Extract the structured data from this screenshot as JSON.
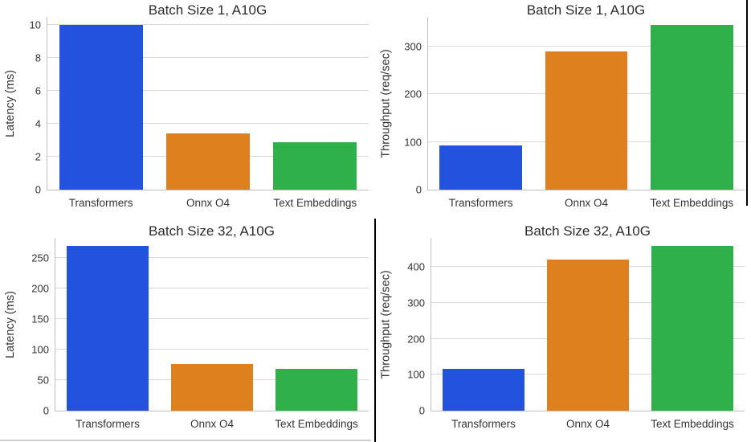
{
  "colors": {
    "bar_blue": "#2353de",
    "bar_orange": "#df801f",
    "bar_green": "#2fb04a",
    "gridline": "#d9d9d9",
    "axis_spine": "#bfbfbf",
    "text": "#333333",
    "divider_black": "#000000",
    "faint_bottom_line": "#cfcfcf"
  },
  "chart_data": [
    {
      "type": "bar",
      "title": "Batch Size 1, A10G",
      "xlabel": "",
      "ylabel": "Latency (ms)",
      "categories": [
        "Transformers",
        "Onnx O4",
        "Text Embeddings"
      ],
      "values": [
        10.0,
        3.4,
        2.9
      ],
      "yticks": [
        0,
        2,
        4,
        6,
        8,
        10
      ],
      "ylim": [
        0,
        10.5
      ],
      "grid": true,
      "legend": false,
      "bar_colors": [
        "#2353de",
        "#df801f",
        "#2fb04a"
      ]
    },
    {
      "type": "bar",
      "title": "Batch Size 1, A10G",
      "xlabel": "",
      "ylabel": "Throughput (req/sec)",
      "categories": [
        "Transformers",
        "Onnx O4",
        "Text Embeddings"
      ],
      "values": [
        93,
        290,
        345
      ],
      "yticks": [
        0,
        100,
        200,
        300
      ],
      "ylim": [
        0,
        362
      ],
      "grid": true,
      "legend": false,
      "bar_colors": [
        "#2353de",
        "#df801f",
        "#2fb04a"
      ]
    },
    {
      "type": "bar",
      "title": "Batch Size 32, A10G",
      "xlabel": "",
      "ylabel": "Latency (ms)",
      "categories": [
        "Transformers",
        "Onnx O4",
        "Text Embeddings"
      ],
      "values": [
        270,
        76,
        69
      ],
      "yticks": [
        0,
        50,
        100,
        150,
        200,
        250
      ],
      "ylim": [
        0,
        283.5
      ],
      "grid": true,
      "legend": false,
      "bar_colors": [
        "#2353de",
        "#df801f",
        "#2fb04a"
      ]
    },
    {
      "type": "bar",
      "title": "Batch Size 32, A10G",
      "xlabel": "",
      "ylabel": "Throughput (req/sec)",
      "categories": [
        "Transformers",
        "Onnx O4",
        "Text Embeddings"
      ],
      "values": [
        117,
        421,
        458
      ],
      "yticks": [
        0,
        100,
        200,
        300,
        400
      ],
      "ylim": [
        0,
        481
      ],
      "grid": true,
      "legend": false,
      "bar_colors": [
        "#2353de",
        "#df801f",
        "#2fb04a"
      ]
    }
  ]
}
